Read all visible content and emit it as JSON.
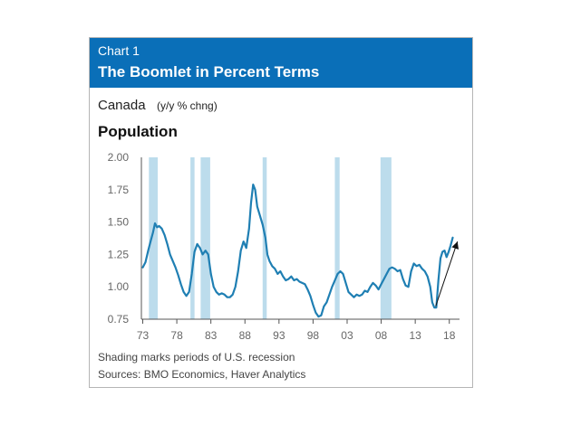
{
  "chart_number": "Chart 1",
  "chart_title": "The Boomlet in Percent Terms",
  "region_label": "Canada",
  "unit_label": "(y/y % chng)",
  "panel_title": "Population",
  "note": "Shading marks periods of U.S. recession",
  "sources": "Sources: BMO Economics, Haver Analytics",
  "colors": {
    "header": "#0a6fb8",
    "line": "#1f7fb3",
    "recession": "#bcdcec",
    "axis": "#555555",
    "arrow": "#111111"
  },
  "chart_data": {
    "type": "line",
    "title": "Population",
    "ylabel": "",
    "xlabel": "",
    "x_tick_labels": [
      "73",
      "78",
      "83",
      "88",
      "93",
      "98",
      "03",
      "08",
      "13",
      "18"
    ],
    "x_tick_years": [
      1973,
      1978,
      1983,
      1988,
      1993,
      1998,
      2003,
      2008,
      2013,
      2018
    ],
    "y_tick_labels": [
      "0.75",
      "1.00",
      "1.25",
      "1.50",
      "1.75",
      "2.00"
    ],
    "y_ticks": [
      0.75,
      1.0,
      1.25,
      1.5,
      1.75,
      2.0
    ],
    "xlim": [
      1972.8,
      2019.5
    ],
    "ylim": [
      0.75,
      2.0
    ],
    "grid": false,
    "recessions": [
      [
        1973.9,
        1975.2
      ],
      [
        1980.0,
        1980.6
      ],
      [
        1981.5,
        1982.9
      ],
      [
        1990.6,
        1991.2
      ],
      [
        2001.2,
        2001.9
      ],
      [
        2007.9,
        2009.5
      ]
    ],
    "series": [
      {
        "values": [
          [
            1973.0,
            1.15
          ],
          [
            1973.4,
            1.19
          ],
          [
            1973.8,
            1.28
          ],
          [
            1974.2,
            1.36
          ],
          [
            1974.5,
            1.42
          ],
          [
            1974.8,
            1.49
          ],
          [
            1975.1,
            1.46
          ],
          [
            1975.4,
            1.47
          ],
          [
            1975.8,
            1.45
          ],
          [
            1976.2,
            1.4
          ],
          [
            1976.6,
            1.33
          ],
          [
            1977.0,
            1.25
          ],
          [
            1977.4,
            1.2
          ],
          [
            1977.8,
            1.15
          ],
          [
            1978.2,
            1.09
          ],
          [
            1978.6,
            1.02
          ],
          [
            1979.0,
            0.96
          ],
          [
            1979.4,
            0.93
          ],
          [
            1979.8,
            0.96
          ],
          [
            1980.2,
            1.1
          ],
          [
            1980.6,
            1.27
          ],
          [
            1981.0,
            1.33
          ],
          [
            1981.4,
            1.3
          ],
          [
            1981.8,
            1.25
          ],
          [
            1982.2,
            1.28
          ],
          [
            1982.6,
            1.25
          ],
          [
            1983.0,
            1.1
          ],
          [
            1983.4,
            1.0
          ],
          [
            1983.8,
            0.96
          ],
          [
            1984.2,
            0.94
          ],
          [
            1984.6,
            0.95
          ],
          [
            1985.0,
            0.94
          ],
          [
            1985.4,
            0.92
          ],
          [
            1985.8,
            0.92
          ],
          [
            1986.2,
            0.94
          ],
          [
            1986.6,
            1.0
          ],
          [
            1987.0,
            1.12
          ],
          [
            1987.4,
            1.28
          ],
          [
            1987.8,
            1.35
          ],
          [
            1988.2,
            1.3
          ],
          [
            1988.6,
            1.45
          ],
          [
            1988.9,
            1.65
          ],
          [
            1989.2,
            1.79
          ],
          [
            1989.5,
            1.75
          ],
          [
            1989.8,
            1.62
          ],
          [
            1990.2,
            1.55
          ],
          [
            1990.6,
            1.48
          ],
          [
            1991.0,
            1.38
          ],
          [
            1991.3,
            1.25
          ],
          [
            1991.6,
            1.2
          ],
          [
            1992.0,
            1.16
          ],
          [
            1992.4,
            1.14
          ],
          [
            1992.8,
            1.1
          ],
          [
            1993.2,
            1.12
          ],
          [
            1993.6,
            1.08
          ],
          [
            1994.0,
            1.05
          ],
          [
            1994.4,
            1.06
          ],
          [
            1994.8,
            1.08
          ],
          [
            1995.2,
            1.05
          ],
          [
            1995.6,
            1.06
          ],
          [
            1996.0,
            1.04
          ],
          [
            1996.4,
            1.03
          ],
          [
            1996.8,
            1.02
          ],
          [
            1997.2,
            0.98
          ],
          [
            1997.6,
            0.93
          ],
          [
            1998.0,
            0.86
          ],
          [
            1998.4,
            0.8
          ],
          [
            1998.8,
            0.77
          ],
          [
            1999.2,
            0.78
          ],
          [
            1999.6,
            0.85
          ],
          [
            2000.0,
            0.88
          ],
          [
            2000.4,
            0.94
          ],
          [
            2000.8,
            1.0
          ],
          [
            2001.2,
            1.05
          ],
          [
            2001.6,
            1.1
          ],
          [
            2002.0,
            1.12
          ],
          [
            2002.4,
            1.1
          ],
          [
            2002.8,
            1.03
          ],
          [
            2003.2,
            0.96
          ],
          [
            2003.6,
            0.94
          ],
          [
            2004.0,
            0.92
          ],
          [
            2004.4,
            0.94
          ],
          [
            2004.8,
            0.93
          ],
          [
            2005.2,
            0.94
          ],
          [
            2005.6,
            0.97
          ],
          [
            2006.0,
            0.96
          ],
          [
            2006.4,
            1.0
          ],
          [
            2006.8,
            1.03
          ],
          [
            2007.2,
            1.01
          ],
          [
            2007.6,
            0.98
          ],
          [
            2008.0,
            1.02
          ],
          [
            2008.4,
            1.06
          ],
          [
            2008.8,
            1.1
          ],
          [
            2009.2,
            1.14
          ],
          [
            2009.6,
            1.15
          ],
          [
            2010.0,
            1.14
          ],
          [
            2010.4,
            1.12
          ],
          [
            2010.8,
            1.13
          ],
          [
            2011.2,
            1.06
          ],
          [
            2011.6,
            1.01
          ],
          [
            2012.0,
            1.0
          ],
          [
            2012.4,
            1.12
          ],
          [
            2012.8,
            1.18
          ],
          [
            2013.2,
            1.16
          ],
          [
            2013.6,
            1.17
          ],
          [
            2014.0,
            1.14
          ],
          [
            2014.4,
            1.12
          ],
          [
            2014.8,
            1.08
          ],
          [
            2015.2,
            1.0
          ],
          [
            2015.5,
            0.88
          ],
          [
            2015.8,
            0.84
          ],
          [
            2016.1,
            0.84
          ],
          [
            2016.4,
            1.05
          ],
          [
            2016.7,
            1.22
          ],
          [
            2017.0,
            1.27
          ],
          [
            2017.3,
            1.28
          ],
          [
            2017.6,
            1.23
          ],
          [
            2017.9,
            1.27
          ],
          [
            2018.2,
            1.32
          ],
          [
            2018.5,
            1.38
          ]
        ]
      }
    ],
    "annotation": "arrow indicating rising trend since 2016"
  }
}
